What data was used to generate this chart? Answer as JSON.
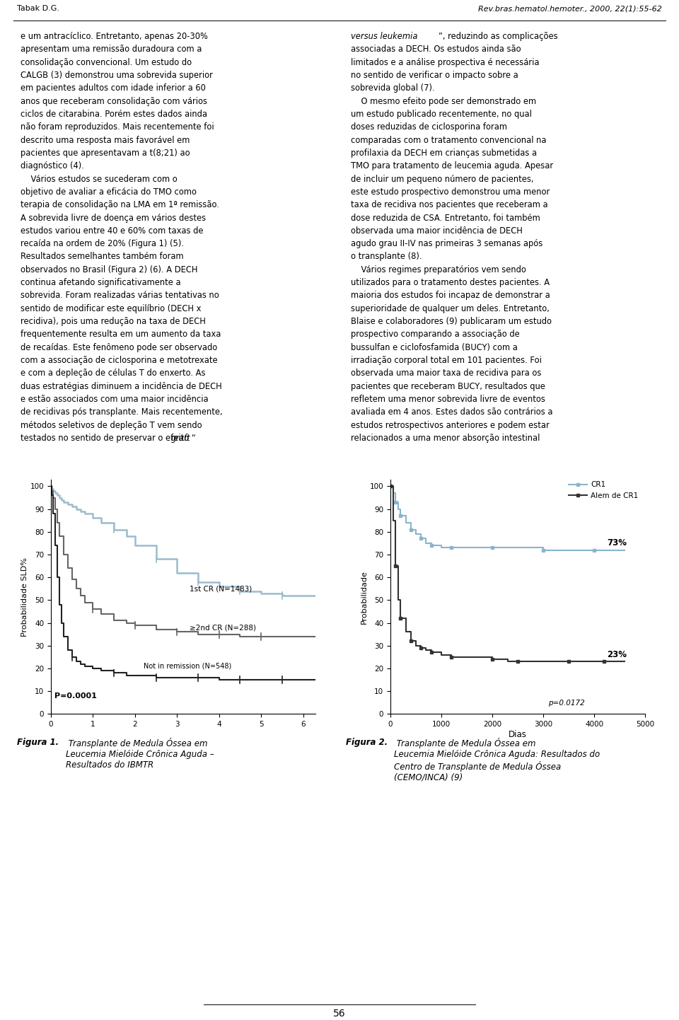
{
  "page_width": 9.6,
  "page_height": 14.42,
  "background_color": "#ffffff",
  "header_left": "Tabak D.G.",
  "header_right": "Rev.bras.hematol.hemoter., 2000, 22(1):55-62",
  "footer_text": "56",
  "left_column_text": [
    "e um antracíclico. Entretanto, apenas 20-30%",
    "apresentam uma remissão duradoura com a",
    "consolidação convencional. Um estudo do",
    "CALGB (3) demonstrou uma sobrevida superior",
    "em pacientes adultos com idade inferior a 60",
    "anos que receberam consolidação com vários",
    "ciclos de citarabina. Porém estes dados ainda",
    "não foram reproduzidos. Mais recentemente foi",
    "descrito uma resposta mais favorável em",
    "pacientes que apresentavam a t(8;21) ao",
    "diagnóstico (4).",
    "    Vários estudos se sucederam com o",
    "objetivo de avaliar a eficácia do TMO como",
    "terapia de consolidação na LMA em 1ª remissão.",
    "A sobrevida livre de doença em vários destes",
    "estudos variou entre 40 e 60% com taxas de",
    "recaída na ordem de 20% (Figura 1) (5).",
    "Resultados semelhantes também foram",
    "observados no Brasil (Figura 2) (6). A DECH",
    "continua afetando significativamente a",
    "sobrevida. Foram realizadas várias tentativas no",
    "sentido de modificar este equilíbrio (DECH x",
    "recidiva), pois uma redução na taxa de DECH",
    "frequentemente resulta em um aumento da taxa",
    "de recaídas. Este fenômeno pode ser observado",
    "com a associação de ciclosporina e metotrexate",
    "e com a depleção de células T do enxerto. As",
    "duas estratégias diminuem a incidência de DECH",
    "e estão associados com uma maior incidência",
    "de recidivas pós transplante. Mais recentemente,",
    "métodos seletivos de depleção T vem sendo",
    "testados no sentido de preservar o efeito “graft"
  ],
  "right_column_text": [
    [
      "normal",
      "versus leukemia",
      "italic"
    ],
    [
      "normal",
      "”, reduzindo as complicações"
    ],
    [
      "normal",
      "associadas a DECH. Os estudos ainda são"
    ],
    [
      "normal",
      "limitados e a análise prospectiva é necessária"
    ],
    [
      "normal",
      "no sentido de verificar o impacto sobre a"
    ],
    [
      "normal",
      "sobrevida global (7)."
    ],
    [
      "normal",
      "    O mesmo efeito pode ser demonstrado em"
    ],
    [
      "normal",
      "um estudo publicado recentemente, no qual"
    ],
    [
      "normal",
      "doses reduzidas de ciclosporina foram"
    ],
    [
      "normal",
      "comparadas com o tratamento convencional na"
    ],
    [
      "normal",
      "profilaxia da DECH em crianças submetidas a"
    ],
    [
      "normal",
      "TMO para tratamento de leucemia aguda. Apesar"
    ],
    [
      "normal",
      "de incluir um pequeno número de pacientes,"
    ],
    [
      "normal",
      "este estudo prospectivo demonstrou uma menor"
    ],
    [
      "normal",
      "taxa de recidiva nos pacientes que receberam a"
    ],
    [
      "normal",
      "dose reduzida de CSA. Entretanto, foi também"
    ],
    [
      "normal",
      "observada uma maior incidência de DECH"
    ],
    [
      "normal",
      "agudo grau II-IV nas primeiras 3 semanas após"
    ],
    [
      "normal",
      "o transplante (8)."
    ],
    [
      "normal",
      "    Vários regimes preparatórios vem sendo"
    ],
    [
      "normal",
      "utilizados para o tratamento destes pacientes. A"
    ],
    [
      "normal",
      "maioria dos estudos foi incapaz de demonstrar a"
    ],
    [
      "normal",
      "superioridade de qualquer um deles. Entretanto,"
    ],
    [
      "normal",
      "Blaise e colaboradores (9) publicaram um estudo"
    ],
    [
      "normal",
      "prospectivo comparando a associação de"
    ],
    [
      "normal",
      "bussulfan e ciclofosfamida (BUCY) com a"
    ],
    [
      "normal",
      "irradiação corporal total em 101 pacientes. Foi"
    ],
    [
      "normal",
      "observada uma maior taxa de recidiva para os"
    ],
    [
      "normal",
      "pacientes que receberam BUCY, resultados que"
    ],
    [
      "normal",
      "refletem uma menor sobrevida livre de eventos"
    ],
    [
      "normal",
      "avaliada em 4 anos. Estes dados são contrários a"
    ],
    [
      "normal",
      "estudos retrospectivos anteriores e podem estar"
    ],
    [
      "normal",
      "relacionados a uma menor absorção intestinal"
    ]
  ],
  "fig1_caption_bold": "Figura 1.",
  "fig1_caption_italic": " Transplante de Medula Óssea em\nLeucemia Mielóide Crônica Aguda –\nResultados do IBMTR",
  "fig2_caption_bold": "Figura 2.",
  "fig2_caption_italic": " Transplante de Medula Óssea em\nLeucemia Mielóide Crônica Aguda: Resultados do\nCentro de Transplante de Medula Óssea\n(CEMO/INCA) (9)"
}
